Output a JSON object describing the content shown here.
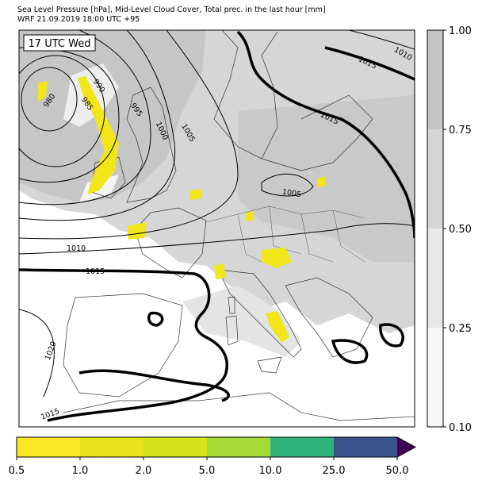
{
  "header": {
    "line1": "Sea Level Pressure [hPa], Mid-Level Cloud Cover, Total prec. in the last hour [mm]",
    "line2": "WRF 21.09.2019 18:00 UTC +95"
  },
  "map": {
    "time_label": "17 UTC Wed",
    "isobar_labels": [
      "980",
      "985",
      "990",
      "995",
      "1000",
      "1005",
      "1005",
      "1010",
      "1010",
      "1015",
      "1015",
      "1015",
      "1015",
      "1020"
    ]
  },
  "cloud_colorbar": {
    "ticks": [
      "0.10",
      "0.25",
      "0.50",
      "0.75",
      "1.00"
    ],
    "colors": [
      "#f7f7f7",
      "#e8e8e8",
      "#d6d6d6",
      "#c4c4c4"
    ]
  },
  "precip_colorbar": {
    "ticks": [
      "0.5",
      "1.0",
      "2.0",
      "5.0",
      "10.0",
      "25.0",
      "50.0"
    ],
    "colors": [
      "#fde725",
      "#e8e419",
      "#d4e21a",
      "#a5db36",
      "#2fb47c",
      "#3b528b",
      "#440154"
    ]
  }
}
